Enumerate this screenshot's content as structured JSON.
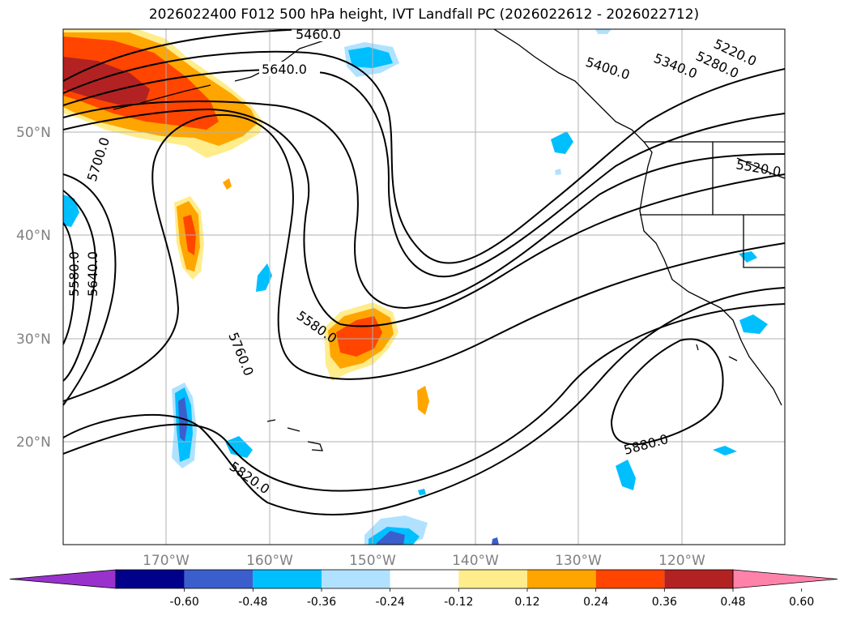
{
  "title": "2026022400 F012 500 hPa height, IVT Landfall PC (2026022612 - 2026022712)",
  "lat_labels": [
    "50°N",
    "40°N",
    "30°N",
    "20°N"
  ],
  "lon_labels": [
    "170°W",
    "160°W",
    "150°W",
    "140°W",
    "130°W",
    "120°W"
  ],
  "contour_labels": [
    "5460.0",
    "5640.0",
    "5400.0",
    "5340.0",
    "5280.0",
    "5220.0",
    "5700.0",
    "5520.0",
    "5580.0",
    "5640.0",
    "5580.0",
    "5760.0",
    "5880.0",
    "5820.0"
  ],
  "colorbar": {
    "ticks": [
      "-0.60",
      "-0.48",
      "-0.36",
      "-0.24",
      "-0.12",
      "0.12",
      "0.24",
      "0.36",
      "0.48",
      "0.60"
    ],
    "colors": [
      "#9932CC",
      "#00008B",
      "#3A5FCD",
      "#00BFFF",
      "#B0E2FF",
      "#FFFFFF",
      "#FFEC8B",
      "#FFA500",
      "#FF4500",
      "#B22222",
      "#FF82AB"
    ]
  },
  "colors": {
    "grid": "#b0b0b0",
    "contour": "#000000"
  }
}
